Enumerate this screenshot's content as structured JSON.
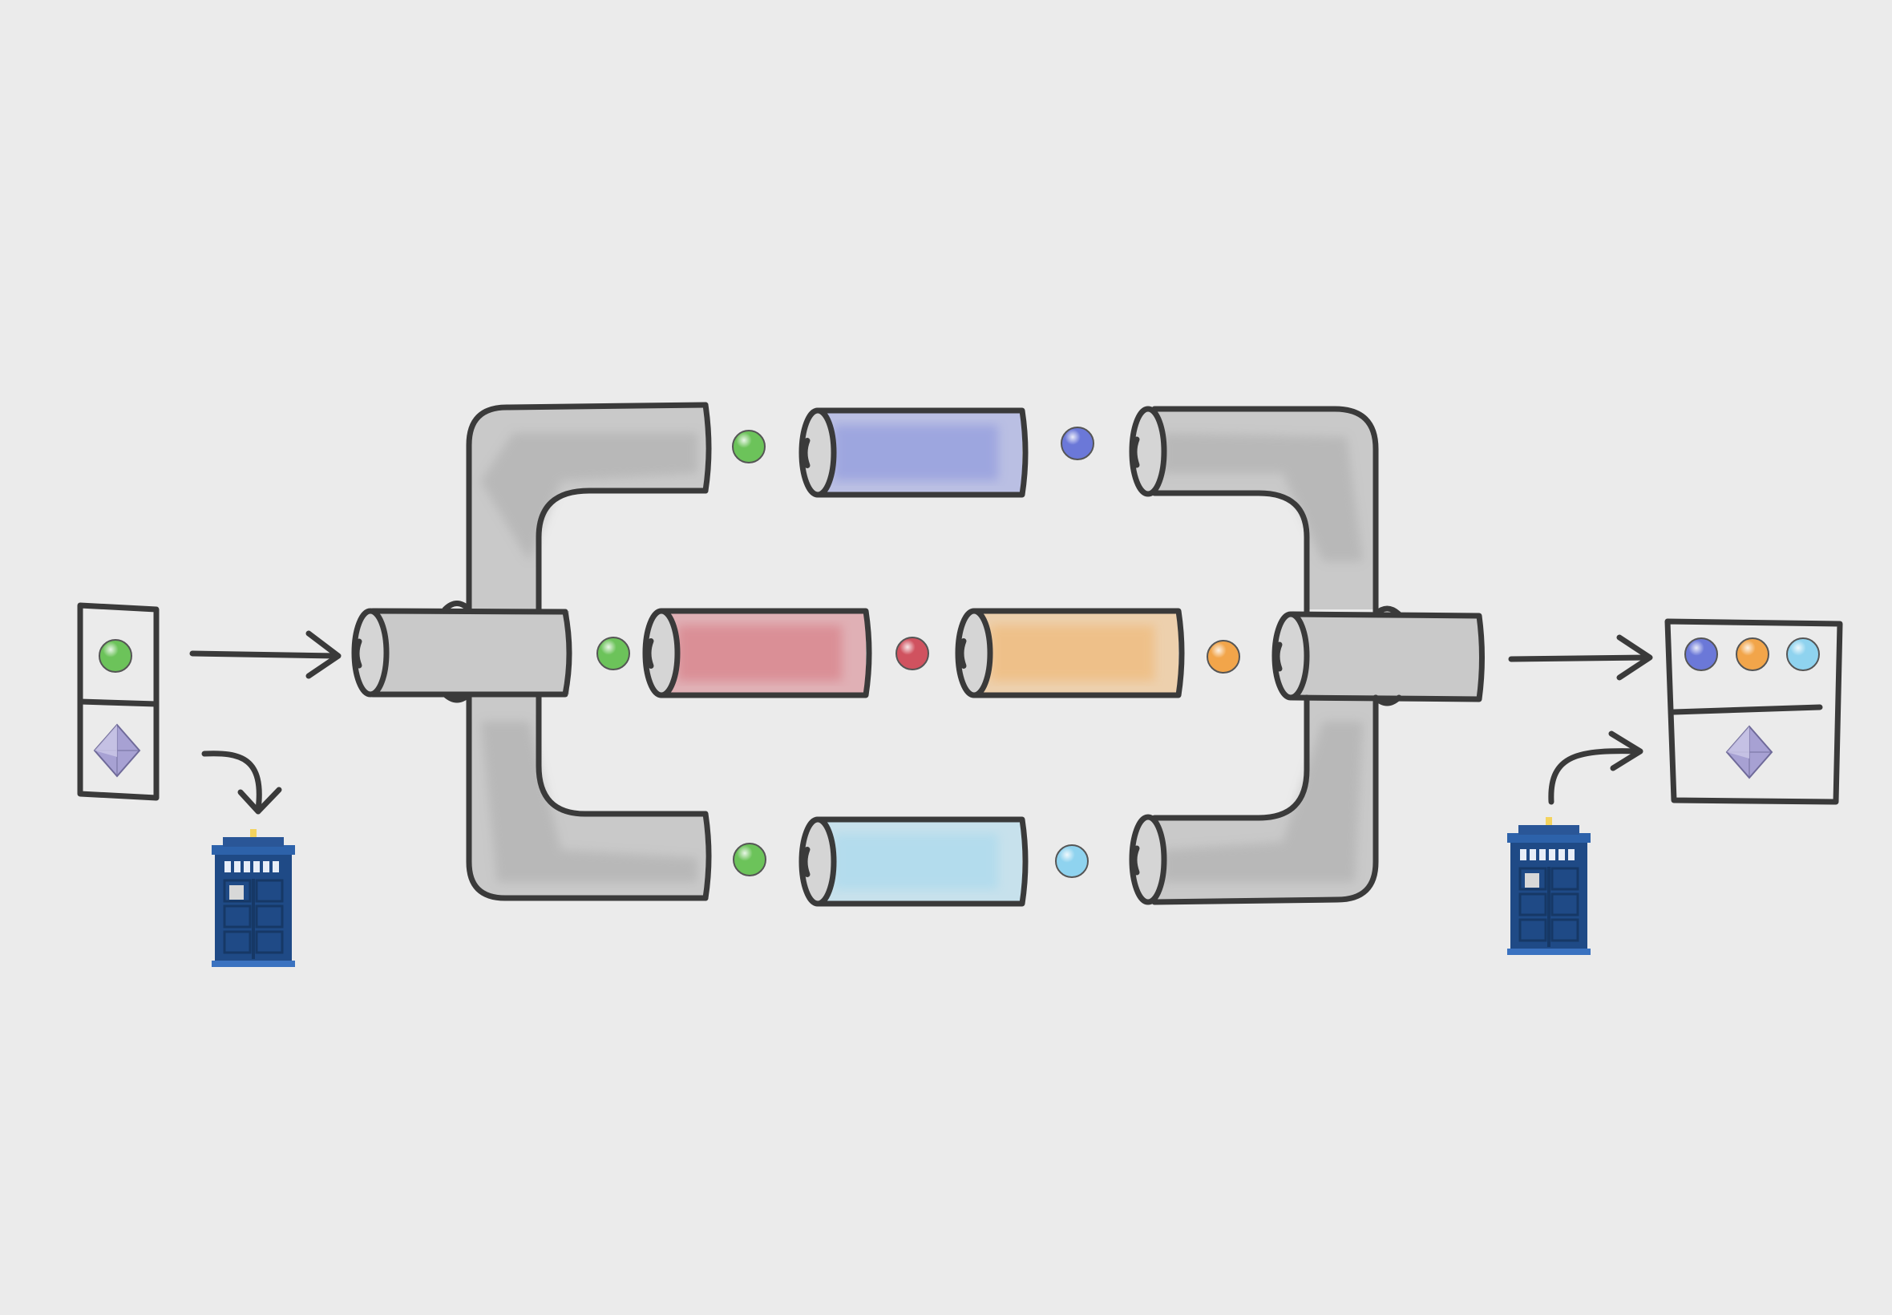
{
  "diagram": {
    "type": "fan-out / fan-in pipeline",
    "colors": {
      "background": "#ebebeb",
      "outline": "#3a3a3a",
      "pipe_grey": "#c9c9c9",
      "green": "#6cc35a",
      "blue": "#6b78d8",
      "red": "#d0525f",
      "orange": "#f2a54a",
      "cyan": "#8fd3ef",
      "purple_diamond": "#9b95c9",
      "tardis_blue": "#1f4a86"
    },
    "input_card": {
      "top_item": "green-ball",
      "bottom_item": "diamond"
    },
    "branches": [
      {
        "name": "top",
        "stages": [
          "blue"
        ],
        "in": "green",
        "out": "blue"
      },
      {
        "name": "middle",
        "stages": [
          "red",
          "orange"
        ],
        "in": "green",
        "mid": "red",
        "out": "orange"
      },
      {
        "name": "bottom",
        "stages": [
          "cyan"
        ],
        "in": "green",
        "out": "cyan"
      }
    ],
    "output_card": {
      "top_items": [
        "blue-ball",
        "orange-ball",
        "cyan-ball"
      ],
      "bottom_item": "diamond"
    },
    "icons": [
      "input-tardis-icon",
      "output-tardis-icon"
    ]
  }
}
